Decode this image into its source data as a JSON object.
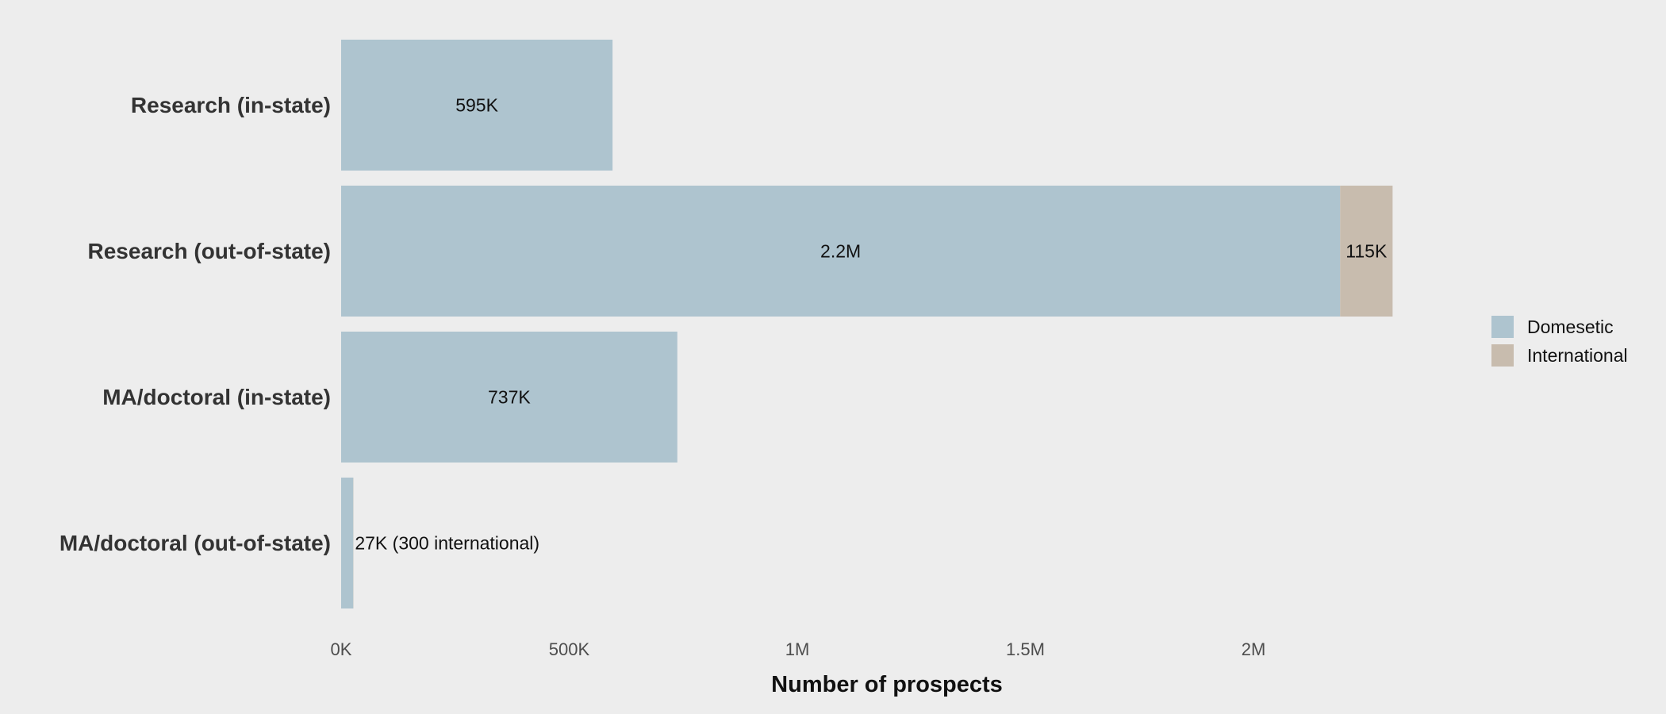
{
  "chart_data": {
    "type": "bar",
    "orientation": "horizontal",
    "stacked": true,
    "categories": [
      "Research (in-state)",
      "Research (out-of-state)",
      "MA/doctoral (in-state)",
      "MA/doctoral (out-of-state)"
    ],
    "series": [
      {
        "name": "Domesetic",
        "color": "#aec4cf",
        "values": [
          595000,
          2190000,
          737000,
          26700
        ]
      },
      {
        "name": "International",
        "color": "#c8bcae",
        "values": [
          0,
          115000,
          0,
          300
        ]
      }
    ],
    "bar_labels": [
      [
        "595K",
        "2.2M",
        "737K",
        "27K (300 international)"
      ],
      [
        "",
        "115K",
        "",
        ""
      ]
    ],
    "xlabel": "Number of prospects",
    "ylabel": "",
    "xlim": [
      0,
      2500000
    ],
    "x_ticks": [
      0,
      500000,
      1000000,
      1500000,
      2000000
    ],
    "x_tick_labels": [
      "0K",
      "500K",
      "1M",
      "1.5M",
      "2M"
    ],
    "grid": false,
    "legend_position": "right"
  }
}
